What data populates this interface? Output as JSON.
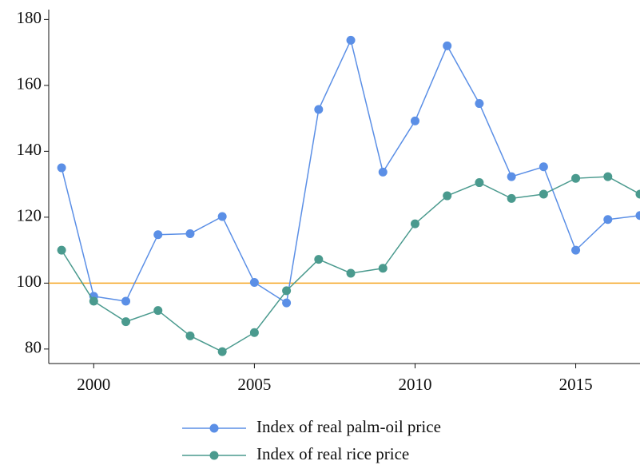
{
  "chart_data": {
    "type": "line",
    "x": [
      1999,
      2000,
      2001,
      2002,
      2003,
      2004,
      2005,
      2006,
      2007,
      2008,
      2009,
      2010,
      2011,
      2012,
      2013,
      2014,
      2015,
      2016,
      2017
    ],
    "series": [
      {
        "name": "Index of real palm-oil price",
        "color": "#5b8fe6",
        "values": [
          135,
          96,
          94.5,
          114.7,
          115,
          120.2,
          100.2,
          94,
          152.7,
          173.7,
          133.7,
          149.2,
          172,
          154.5,
          132.3,
          135.3,
          110,
          119.3,
          120.5
        ]
      },
      {
        "name": "Index of real rice price",
        "color": "#4a9a8e",
        "values": [
          110,
          94.5,
          88.3,
          91.7,
          84,
          79.2,
          85,
          97.7,
          107.2,
          103,
          104.5,
          118,
          126.5,
          130.5,
          125.7,
          127,
          131.8,
          132.3,
          127
        ]
      }
    ],
    "reference_line": {
      "value": 100,
      "color": "#f5a623"
    },
    "xlim": [
      1998.6,
      2017
    ],
    "xticks": [
      2000,
      2005,
      2010,
      2015
    ],
    "ylim": [
      75.6,
      183
    ],
    "yticks": [
      80,
      100,
      120,
      140,
      160,
      180
    ],
    "grid": false,
    "legend": "bottom"
  }
}
